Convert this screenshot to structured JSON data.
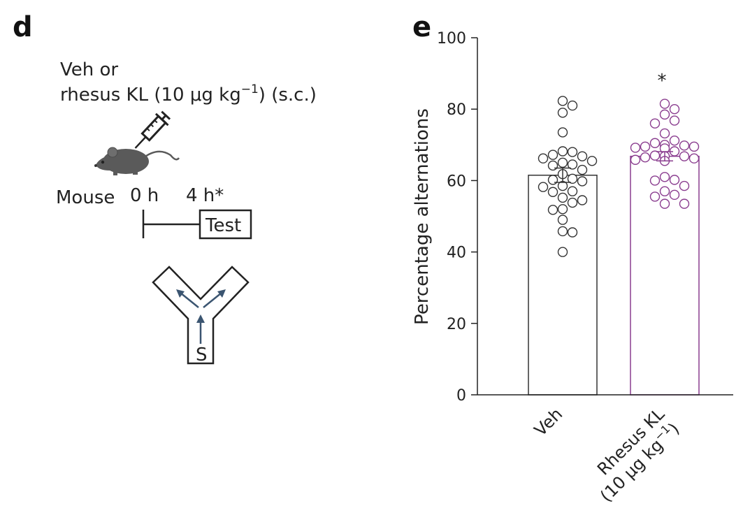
{
  "panel_d": {
    "letter": "d",
    "treatment_line1": "Veh or",
    "treatment_line2_prefix": "rhesus KL (10 μg kg",
    "treatment_line2_exp": "−1",
    "treatment_line2_suffix": ") (s.c.)",
    "species": "Mouse",
    "time_start": "0 h",
    "time_test": "4 h*",
    "test_label": "Test",
    "maze_start_label": "S",
    "mouse_icon": "mouse-icon",
    "syringe_icon": "syringe-icon",
    "maze_icon": "y-maze-icon"
  },
  "panel_e": {
    "letter": "e",
    "significance": "*",
    "category_labels": [
      {
        "line1": "Veh",
        "line2_prefix": "",
        "line2_exp": "",
        "line2_suffix": ""
      },
      {
        "line1": "Rhesus KL",
        "line2_prefix": "(10 μg kg",
        "line2_exp": "−1",
        "line2_suffix": ")"
      }
    ]
  },
  "colors": {
    "veh": "#333333",
    "kl": "#8a3d8f",
    "arrow": "#3b5571",
    "mouse_body": "#5a5a5a"
  },
  "chart_data": {
    "type": "bar",
    "title": "",
    "xlabel": "",
    "ylabel": "Percentage alternations",
    "ylim": [
      0,
      100
    ],
    "yticks": [
      0,
      20,
      40,
      60,
      80,
      100
    ],
    "categories": [
      "Veh",
      "Rhesus KL (10 μg kg−1)"
    ],
    "values": [
      61.5,
      66.8
    ],
    "sem": [
      2.0,
      1.3
    ],
    "series_points": [
      {
        "name": "Veh",
        "values": [
          82.3,
          81.0,
          79.0,
          73.5,
          68.2,
          68.0,
          67.2,
          66.8,
          66.2,
          65.5,
          65.0,
          64.5,
          64.2,
          63.0,
          61.8,
          60.5,
          60.2,
          59.8,
          58.5,
          58.2,
          57.0,
          56.8,
          55.2,
          54.5,
          53.8,
          52.0,
          51.8,
          49.0,
          45.8,
          45.5,
          40.0
        ]
      },
      {
        "name": "Rhesus KL",
        "values": [
          81.5,
          80.0,
          78.5,
          76.8,
          76.0,
          73.2,
          71.2,
          70.5,
          70.0,
          69.8,
          69.5,
          69.5,
          69.2,
          69.0,
          68.2,
          67.0,
          66.8,
          66.8,
          66.5,
          66.2,
          65.8,
          65.5,
          61.0,
          60.2,
          60.0,
          58.5,
          57.0,
          56.0,
          55.5,
          53.5,
          53.5
        ]
      }
    ]
  }
}
